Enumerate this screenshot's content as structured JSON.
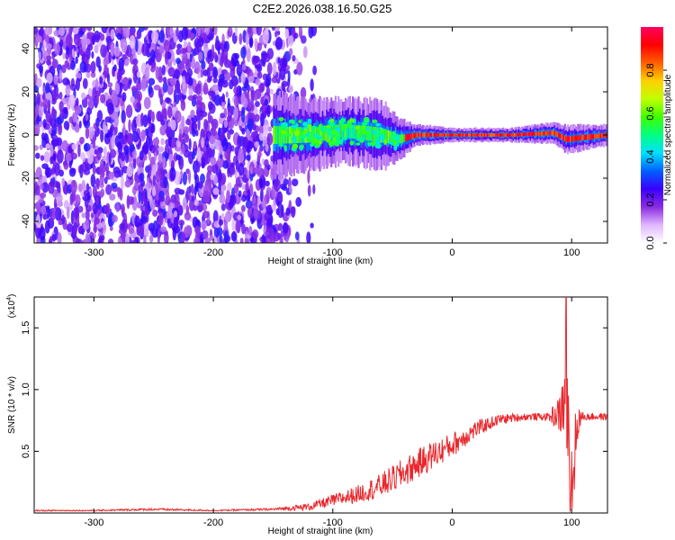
{
  "figure": {
    "title": "C2E2.2026.038.16.50.G25"
  },
  "chart_data": [
    {
      "type": "heatmap",
      "xlabel": "Height of straight line (km)",
      "ylabel": "Frequency (Hz)",
      "xlim": [
        -350,
        130
      ],
      "ylim": [
        -50,
        50
      ],
      "xticks": [
        -300,
        -200,
        -100,
        0,
        100
      ],
      "yticks": [
        -40,
        -20,
        0,
        20,
        40
      ],
      "colorbar": {
        "label": "Normalized spectral amplitude",
        "range": [
          0,
          1
        ],
        "ticks": [
          "0.0",
          "0.2",
          "0.4",
          "0.6",
          "0.8"
        ],
        "colors": [
          "#ffffff",
          "#e0b8ff",
          "#8a2be2",
          "#3a00ff",
          "#0060ff",
          "#00e0ff",
          "#00ff80",
          "#40ff00",
          "#c0ff00",
          "#ffd000",
          "#ff6000",
          "#ff0000",
          "#ff0060"
        ]
      },
      "noise_region_x": [
        -350,
        -135
      ],
      "signal_band": [
        {
          "x": -150,
          "center": 0,
          "halfwidth": 12
        },
        {
          "x": -120,
          "center": 0,
          "halfwidth": 10
        },
        {
          "x": -90,
          "center": 2,
          "halfwidth": 9
        },
        {
          "x": -60,
          "center": 0,
          "halfwidth": 10
        },
        {
          "x": -45,
          "center": -2,
          "halfwidth": 6
        },
        {
          "x": -30,
          "center": 0,
          "halfwidth": 3
        },
        {
          "x": 0,
          "center": 0,
          "halfwidth": 2
        },
        {
          "x": 50,
          "center": 0,
          "halfwidth": 2
        },
        {
          "x": 85,
          "center": 1,
          "halfwidth": 3
        },
        {
          "x": 95,
          "center": -2,
          "halfwidth": 4
        },
        {
          "x": 130,
          "center": 0,
          "halfwidth": 3
        }
      ]
    },
    {
      "type": "line",
      "xlabel": "Height of straight line (km)",
      "ylabel": "SNR (10 * v/v)",
      "yscale_label": "(x10",
      "yscale_exp": "4",
      "xlim": [
        -350,
        130
      ],
      "ylim": [
        0,
        1.75
      ],
      "xticks": [
        -300,
        -200,
        -100,
        0,
        100
      ],
      "yticks": [
        "0.5",
        "1.0",
        "1.5"
      ],
      "color": "#e8282d",
      "series": [
        {
          "x": [
            -350,
            -300,
            -250,
            -200,
            -150,
            -120,
            -100,
            -80,
            -60,
            -40,
            -20,
            0,
            20,
            40,
            60,
            80,
            90,
            95,
            100,
            105,
            110,
            130
          ],
          "y": [
            0.02,
            0.02,
            0.03,
            0.02,
            0.03,
            0.05,
            0.1,
            0.15,
            0.22,
            0.33,
            0.45,
            0.55,
            0.68,
            0.76,
            0.78,
            0.78,
            0.8,
            0.9,
            0.2,
            0.75,
            0.78,
            0.78
          ],
          "noise": [
            0.005,
            0.005,
            0.01,
            0.005,
            0.01,
            0.03,
            0.05,
            0.07,
            0.1,
            0.12,
            0.12,
            0.1,
            0.07,
            0.04,
            0.03,
            0.03,
            0.15,
            0.4,
            0.5,
            0.15,
            0.03,
            0.03
          ]
        }
      ]
    }
  ]
}
